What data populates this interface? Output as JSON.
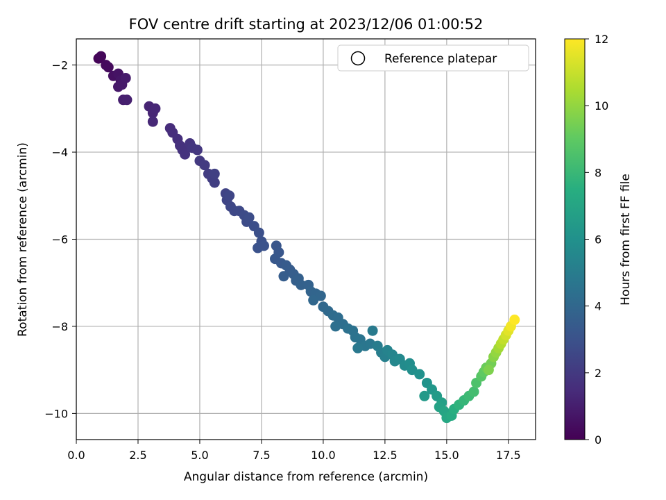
{
  "chart_data": {
    "type": "scatter",
    "title": "FOV centre drift starting at 2023/12/06 01:00:52",
    "xlabel": "Angular distance from reference (arcmin)",
    "ylabel": "Rotation from reference (arcmin)",
    "xlim": [
      0.0,
      18.6
    ],
    "ylim": [
      -10.6,
      -1.4
    ],
    "xticks": [
      0.0,
      2.5,
      5.0,
      7.5,
      10.0,
      12.5,
      15.0,
      17.5
    ],
    "xtick_labels": [
      "0.0",
      "2.5",
      "5.0",
      "7.5",
      "10.0",
      "12.5",
      "15.0",
      "17.5"
    ],
    "yticks": [
      -2,
      -4,
      -6,
      -8,
      -10
    ],
    "ytick_labels": [
      "−2",
      "−4",
      "−6",
      "−8",
      "−10"
    ],
    "grid": true,
    "legend": {
      "position": "top-right",
      "entries": [
        "Reference platepar"
      ]
    },
    "colorbar": {
      "label": "Hours from first FF file",
      "range": [
        0,
        12
      ],
      "ticks": [
        0,
        2,
        4,
        6,
        8,
        10,
        12
      ],
      "tick_labels": [
        "0",
        "2",
        "4",
        "6",
        "8",
        "10",
        "12"
      ],
      "colormap": "viridis"
    },
    "points": [
      [
        0.9,
        -1.85,
        0.1
      ],
      [
        1.0,
        -1.8,
        0.2
      ],
      [
        1.2,
        -2.0,
        0.3
      ],
      [
        1.3,
        -2.05,
        0.35
      ],
      [
        1.5,
        -2.25,
        0.5
      ],
      [
        1.7,
        -2.2,
        0.6
      ],
      [
        1.8,
        -2.35,
        0.7
      ],
      [
        1.7,
        -2.5,
        0.8
      ],
      [
        1.85,
        -2.45,
        0.85
      ],
      [
        2.0,
        -2.3,
        0.9
      ],
      [
        1.9,
        -2.8,
        1.0
      ],
      [
        2.05,
        -2.8,
        1.05
      ],
      [
        2.95,
        -2.95,
        1.2
      ],
      [
        3.1,
        -3.1,
        1.25
      ],
      [
        3.2,
        -3.0,
        1.3
      ],
      [
        3.1,
        -3.3,
        1.35
      ],
      [
        3.8,
        -3.45,
        1.5
      ],
      [
        3.9,
        -3.55,
        1.55
      ],
      [
        4.1,
        -3.7,
        1.6
      ],
      [
        4.2,
        -3.85,
        1.65
      ],
      [
        4.3,
        -3.95,
        1.7
      ],
      [
        4.4,
        -4.05,
        1.75
      ],
      [
        4.6,
        -3.8,
        1.8
      ],
      [
        4.7,
        -3.9,
        1.85
      ],
      [
        4.9,
        -3.95,
        1.9
      ],
      [
        5.0,
        -4.2,
        2.0
      ],
      [
        5.2,
        -4.3,
        2.05
      ],
      [
        5.35,
        -4.5,
        2.1
      ],
      [
        5.5,
        -4.6,
        2.15
      ],
      [
        5.6,
        -4.7,
        2.2
      ],
      [
        5.6,
        -4.5,
        2.25
      ],
      [
        6.05,
        -4.95,
        2.4
      ],
      [
        6.1,
        -5.1,
        2.45
      ],
      [
        6.2,
        -5.0,
        2.5
      ],
      [
        6.25,
        -5.25,
        2.55
      ],
      [
        6.4,
        -5.35,
        2.6
      ],
      [
        6.6,
        -5.35,
        2.65
      ],
      [
        6.8,
        -5.45,
        2.7
      ],
      [
        6.9,
        -5.6,
        2.75
      ],
      [
        7.0,
        -5.5,
        2.8
      ],
      [
        7.2,
        -5.7,
        2.85
      ],
      [
        7.4,
        -5.85,
        2.9
      ],
      [
        7.5,
        -6.05,
        2.95
      ],
      [
        7.35,
        -6.2,
        3.0
      ],
      [
        7.6,
        -6.15,
        3.05
      ],
      [
        8.1,
        -6.15,
        3.2
      ],
      [
        8.2,
        -6.3,
        3.25
      ],
      [
        8.05,
        -6.45,
        3.3
      ],
      [
        8.3,
        -6.55,
        3.35
      ],
      [
        8.5,
        -6.6,
        3.4
      ],
      [
        8.65,
        -6.7,
        3.45
      ],
      [
        8.4,
        -6.85,
        3.5
      ],
      [
        8.8,
        -6.8,
        3.55
      ],
      [
        8.9,
        -6.95,
        3.6
      ],
      [
        9.0,
        -6.9,
        3.65
      ],
      [
        9.1,
        -7.05,
        3.7
      ],
      [
        9.4,
        -7.05,
        3.75
      ],
      [
        9.5,
        -7.2,
        3.85
      ],
      [
        9.7,
        -7.25,
        3.9
      ],
      [
        9.9,
        -7.3,
        3.95
      ],
      [
        9.6,
        -7.4,
        4.0
      ],
      [
        10.0,
        -7.55,
        4.05
      ],
      [
        10.2,
        -7.65,
        4.1
      ],
      [
        10.4,
        -7.75,
        4.2
      ],
      [
        10.6,
        -7.8,
        4.25
      ],
      [
        10.8,
        -7.95,
        4.3
      ],
      [
        10.5,
        -8.0,
        4.35
      ],
      [
        11.0,
        -8.05,
        4.45
      ],
      [
        11.2,
        -8.1,
        4.5
      ],
      [
        11.3,
        -8.25,
        4.55
      ],
      [
        11.5,
        -8.3,
        4.6
      ],
      [
        11.7,
        -8.45,
        4.7
      ],
      [
        11.9,
        -8.4,
        4.75
      ],
      [
        11.4,
        -8.5,
        4.8
      ],
      [
        12.0,
        -8.1,
        4.9
      ],
      [
        12.2,
        -8.45,
        5.0
      ],
      [
        12.35,
        -8.6,
        5.1
      ],
      [
        12.5,
        -8.7,
        5.2
      ],
      [
        12.6,
        -8.55,
        5.3
      ],
      [
        12.8,
        -8.65,
        5.4
      ],
      [
        12.9,
        -8.8,
        5.5
      ],
      [
        13.1,
        -8.75,
        5.6
      ],
      [
        13.3,
        -8.9,
        5.7
      ],
      [
        13.5,
        -8.85,
        5.8
      ],
      [
        13.6,
        -9.0,
        5.9
      ],
      [
        13.9,
        -9.1,
        6.0
      ],
      [
        14.2,
        -9.3,
        6.1
      ],
      [
        14.4,
        -9.45,
        6.3
      ],
      [
        14.1,
        -9.6,
        6.4
      ],
      [
        14.6,
        -9.6,
        6.5
      ],
      [
        14.8,
        -9.75,
        6.7
      ],
      [
        14.7,
        -9.85,
        6.85
      ],
      [
        14.9,
        -9.95,
        7.0
      ],
      [
        15.0,
        -10.1,
        7.15
      ],
      [
        15.2,
        -10.05,
        7.3
      ],
      [
        15.3,
        -9.9,
        7.5
      ],
      [
        15.5,
        -9.8,
        7.7
      ],
      [
        15.7,
        -9.7,
        7.9
      ],
      [
        15.9,
        -9.6,
        8.1
      ],
      [
        16.1,
        -9.5,
        8.3
      ],
      [
        16.2,
        -9.3,
        8.55
      ],
      [
        16.4,
        -9.15,
        8.8
      ],
      [
        16.5,
        -9.05,
        9.0
      ],
      [
        16.6,
        -8.95,
        9.2
      ],
      [
        16.8,
        -8.85,
        9.4
      ],
      [
        16.7,
        -9.0,
        9.6
      ],
      [
        16.9,
        -8.7,
        9.8
      ],
      [
        17.0,
        -8.6,
        10.0
      ],
      [
        17.1,
        -8.5,
        10.3
      ],
      [
        17.2,
        -8.4,
        10.6
      ],
      [
        17.3,
        -8.3,
        10.9
      ],
      [
        17.4,
        -8.2,
        11.2
      ],
      [
        17.5,
        -8.1,
        11.5
      ],
      [
        17.6,
        -8.0,
        11.8
      ],
      [
        17.75,
        -7.85,
        12.0
      ]
    ]
  }
}
